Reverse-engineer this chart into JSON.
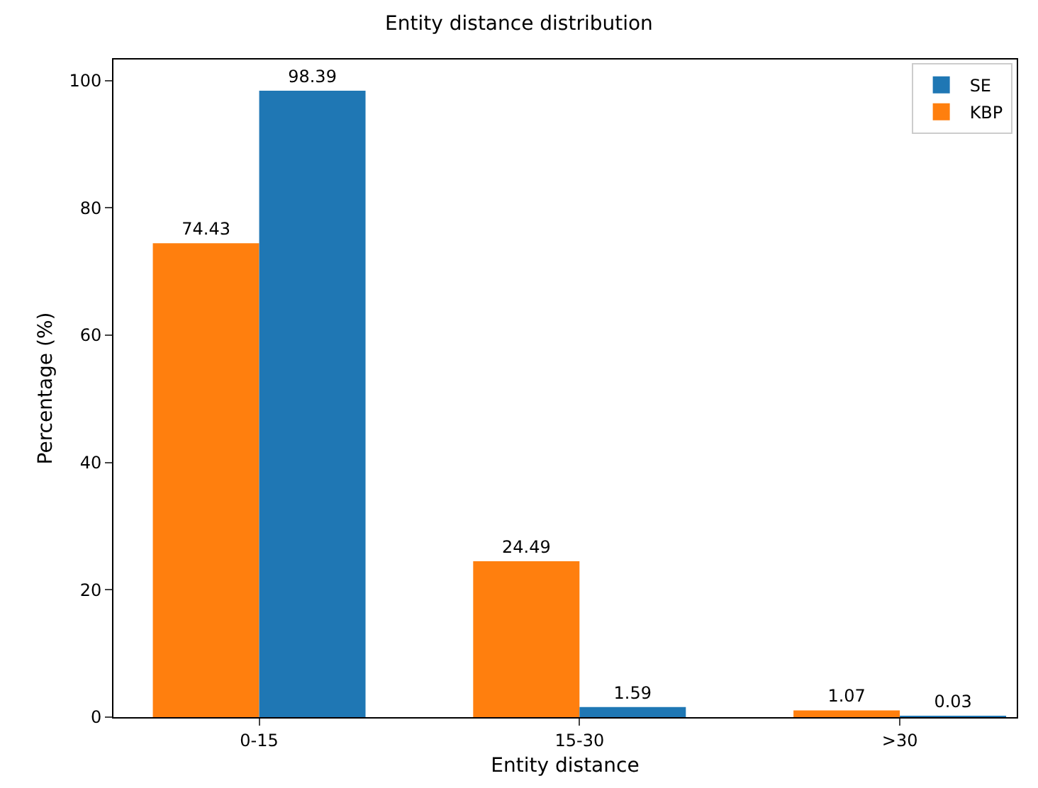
{
  "chart_data": {
    "type": "bar",
    "title": "Entity distance distribution",
    "xlabel": "Entity distance",
    "ylabel": "Percentage (%)",
    "categories": [
      "0-15",
      "15-30",
      ">30"
    ],
    "series": [
      {
        "name": "KBP",
        "color": "#ff7f0e",
        "values": [
          74.43,
          24.49,
          1.07
        ]
      },
      {
        "name": "SE",
        "color": "#1f77b4",
        "values": [
          98.39,
          1.59,
          0.03
        ]
      }
    ],
    "ylim": [
      0,
      103.3
    ],
    "yticks": [
      0,
      20,
      40,
      60,
      80,
      100
    ],
    "legend": "top right",
    "data_labels": true
  }
}
